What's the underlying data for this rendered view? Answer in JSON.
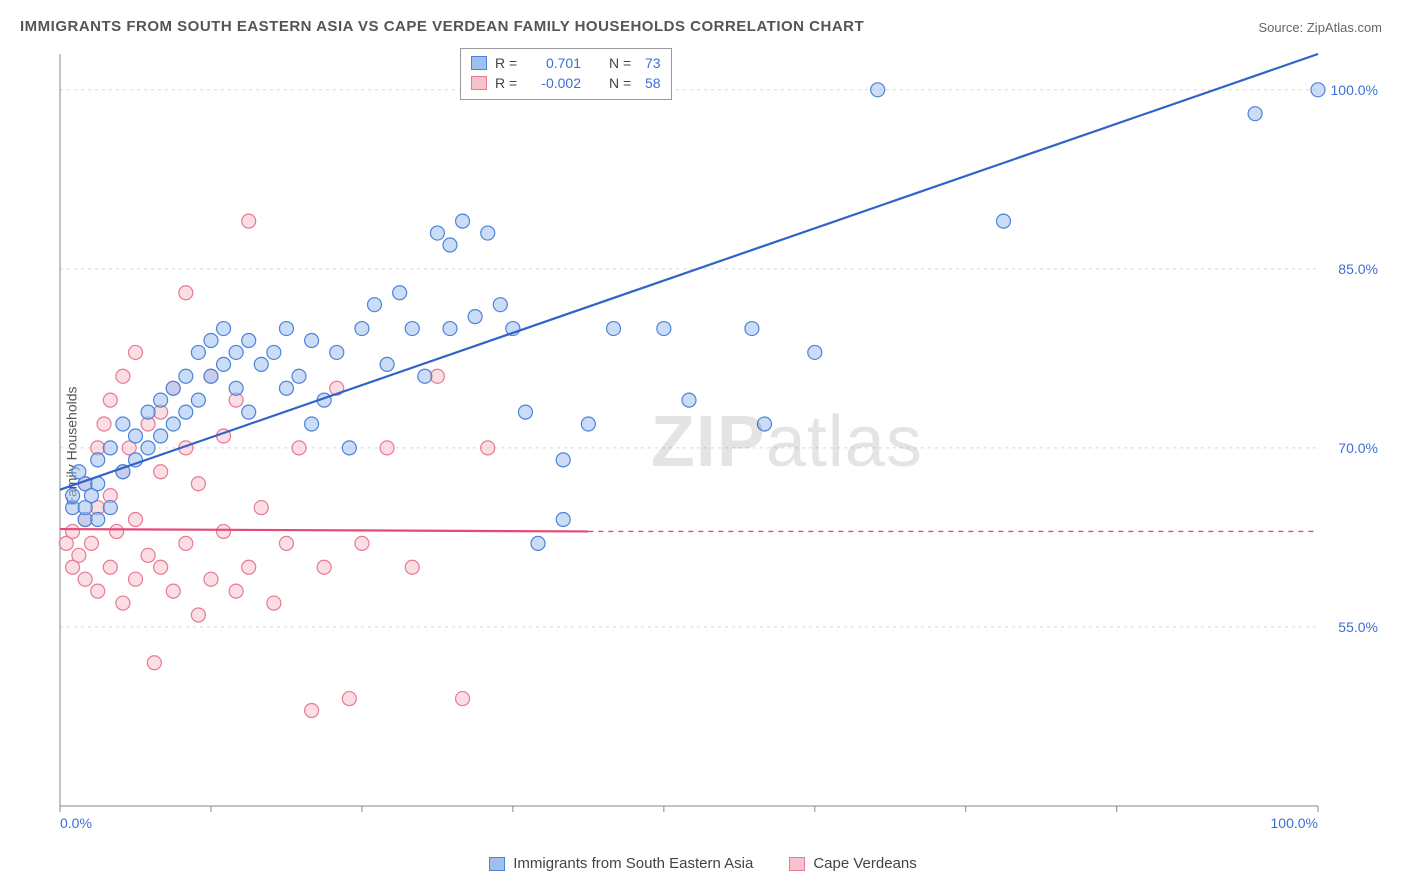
{
  "title": "IMMIGRANTS FROM SOUTH EASTERN ASIA VS CAPE VERDEAN FAMILY HOUSEHOLDS CORRELATION CHART",
  "source_label": "Source: ZipAtlas.com",
  "ylabel": "Family Households",
  "watermark_a": "ZIP",
  "watermark_b": "atlas",
  "chart": {
    "type": "scatter",
    "xlim": [
      0,
      100
    ],
    "ylim": [
      40,
      103
    ],
    "yticks": [
      55.0,
      70.0,
      85.0,
      100.0
    ],
    "ytick_labels": [
      "55.0%",
      "70.0%",
      "85.0%",
      "100.0%"
    ],
    "xtick_labels_shown": {
      "min": "0.0%",
      "max": "100.0%"
    },
    "xtick_positions": [
      0,
      12,
      24,
      36,
      48,
      60,
      72,
      84,
      100
    ],
    "grid_color": "#d8d8d8",
    "axis_color": "#888888",
    "background_color": "#ffffff",
    "marker_radius": 7,
    "marker_stroke_width": 1.2,
    "trend_line_width": 2.2,
    "series": [
      {
        "name": "Immigrants from South Eastern Asia",
        "legend_key": "blue",
        "fill_color": "#9fc0ef",
        "stroke_color": "#4d83d9",
        "fill_opacity": 0.55,
        "r_value": "0.701",
        "n_value": "73",
        "trend": {
          "x1": 0,
          "y1": 66.5,
          "x2": 100,
          "y2": 103,
          "color": "#2f63c9"
        },
        "points": [
          [
            1,
            65
          ],
          [
            1,
            66
          ],
          [
            2,
            64
          ],
          [
            2,
            67
          ],
          [
            1.5,
            68
          ],
          [
            2,
            65
          ],
          [
            2.5,
            66
          ],
          [
            3,
            64
          ],
          [
            3,
            67
          ],
          [
            3,
            69
          ],
          [
            4,
            65
          ],
          [
            4,
            70
          ],
          [
            5,
            68
          ],
          [
            5,
            72
          ],
          [
            6,
            69
          ],
          [
            6,
            71
          ],
          [
            7,
            70
          ],
          [
            7,
            73
          ],
          [
            8,
            71
          ],
          [
            8,
            74
          ],
          [
            9,
            72
          ],
          [
            9,
            75
          ],
          [
            10,
            73
          ],
          [
            10,
            76
          ],
          [
            11,
            74
          ],
          [
            11,
            78
          ],
          [
            12,
            76
          ],
          [
            12,
            79
          ],
          [
            13,
            77
          ],
          [
            13,
            80
          ],
          [
            14,
            78
          ],
          [
            14,
            75
          ],
          [
            15,
            79
          ],
          [
            15,
            73
          ],
          [
            16,
            77
          ],
          [
            17,
            78
          ],
          [
            18,
            80
          ],
          [
            18,
            75
          ],
          [
            19,
            76
          ],
          [
            20,
            79
          ],
          [
            20,
            72
          ],
          [
            21,
            74
          ],
          [
            22,
            78
          ],
          [
            23,
            70
          ],
          [
            24,
            80
          ],
          [
            25,
            82
          ],
          [
            26,
            77
          ],
          [
            27,
            83
          ],
          [
            28,
            80
          ],
          [
            29,
            76
          ],
          [
            30,
            88
          ],
          [
            31,
            87
          ],
          [
            31,
            80
          ],
          [
            32,
            89
          ],
          [
            33,
            81
          ],
          [
            34,
            88
          ],
          [
            35,
            82
          ],
          [
            36,
            80
          ],
          [
            37,
            73
          ],
          [
            38,
            62
          ],
          [
            40,
            69
          ],
          [
            40,
            64
          ],
          [
            42,
            72
          ],
          [
            44,
            80
          ],
          [
            48,
            80
          ],
          [
            50,
            74
          ],
          [
            55,
            80
          ],
          [
            56,
            72
          ],
          [
            60,
            78
          ],
          [
            65,
            100
          ],
          [
            75,
            89
          ],
          [
            95,
            98
          ],
          [
            100,
            100
          ]
        ]
      },
      {
        "name": "Cape Verdeans",
        "legend_key": "pink",
        "fill_color": "#f6c3cd",
        "stroke_color": "#e77a94",
        "fill_opacity": 0.55,
        "r_value": "-0.002",
        "n_value": "58",
        "trend": {
          "x1": 0,
          "y1": 63.2,
          "x2": 42,
          "y2": 63.0,
          "color": "#e34b76",
          "dash_from_x": 42
        },
        "points": [
          [
            0.5,
            62
          ],
          [
            1,
            60
          ],
          [
            1,
            63
          ],
          [
            1.5,
            61
          ],
          [
            2,
            59
          ],
          [
            2,
            64
          ],
          [
            2,
            67
          ],
          [
            2.5,
            62
          ],
          [
            3,
            58
          ],
          [
            3,
            65
          ],
          [
            3,
            70
          ],
          [
            3.5,
            72
          ],
          [
            4,
            60
          ],
          [
            4,
            66
          ],
          [
            4,
            74
          ],
          [
            4.5,
            63
          ],
          [
            5,
            57
          ],
          [
            5,
            68
          ],
          [
            5,
            76
          ],
          [
            5.5,
            70
          ],
          [
            6,
            59
          ],
          [
            6,
            64
          ],
          [
            6,
            78
          ],
          [
            7,
            61
          ],
          [
            7,
            72
          ],
          [
            7.5,
            52
          ],
          [
            8,
            60
          ],
          [
            8,
            68
          ],
          [
            8,
            73
          ],
          [
            9,
            58
          ],
          [
            9,
            75
          ],
          [
            10,
            62
          ],
          [
            10,
            70
          ],
          [
            10,
            83
          ],
          [
            11,
            56
          ],
          [
            11,
            67
          ],
          [
            12,
            59
          ],
          [
            12,
            76
          ],
          [
            13,
            63
          ],
          [
            13,
            71
          ],
          [
            14,
            58
          ],
          [
            14,
            74
          ],
          [
            15,
            60
          ],
          [
            15,
            89
          ],
          [
            16,
            65
          ],
          [
            17,
            57
          ],
          [
            18,
            62
          ],
          [
            19,
            70
          ],
          [
            20,
            48
          ],
          [
            21,
            60
          ],
          [
            22,
            75
          ],
          [
            23,
            49
          ],
          [
            24,
            62
          ],
          [
            26,
            70
          ],
          [
            28,
            60
          ],
          [
            30,
            76
          ],
          [
            32,
            49
          ],
          [
            34,
            70
          ]
        ]
      }
    ]
  },
  "legend_box": {
    "r_label": "R =",
    "n_label": "N ="
  },
  "bottom_legend": {
    "items": [
      {
        "label": "Immigrants from South Eastern Asia",
        "fill": "#9fc0ef",
        "stroke": "#4d83d9"
      },
      {
        "label": "Cape Verdeans",
        "fill": "#f6c3cd",
        "stroke": "#e77a94"
      }
    ]
  }
}
